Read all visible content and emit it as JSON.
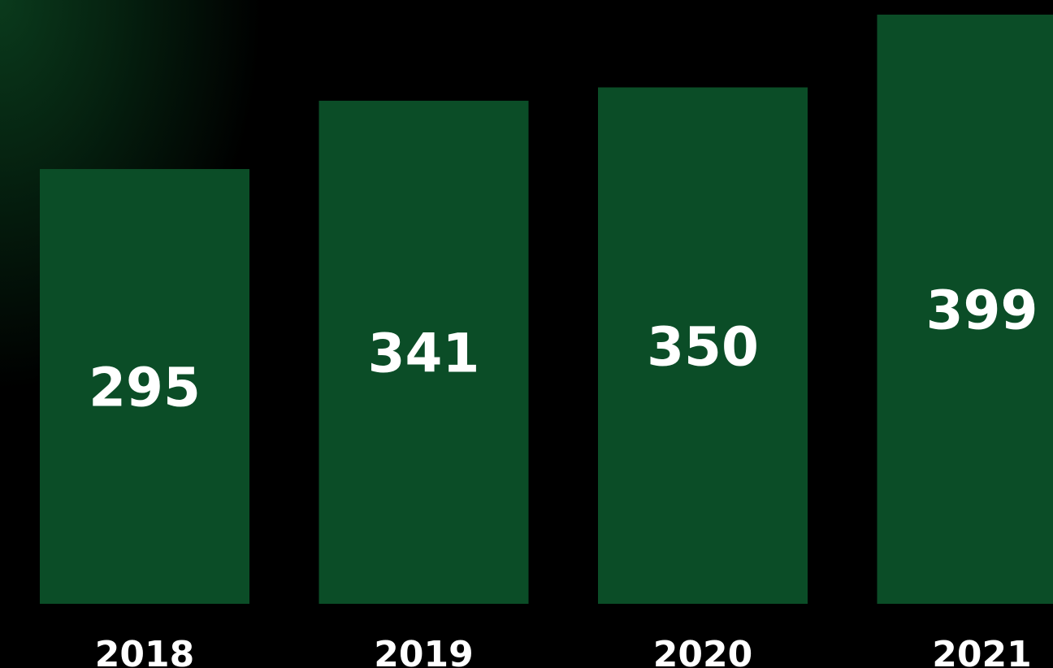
{
  "chart_data": {
    "type": "bar",
    "categories": [
      "2018",
      "2019",
      "2020",
      "2021"
    ],
    "values": [
      295,
      341,
      350,
      399
    ],
    "show_value_labels": true,
    "grid": false,
    "legend": "none",
    "colors": {
      "bar": "#0b4d27",
      "background": "#000000",
      "glow": "#0a3a1c",
      "text": "#ffffff"
    }
  }
}
